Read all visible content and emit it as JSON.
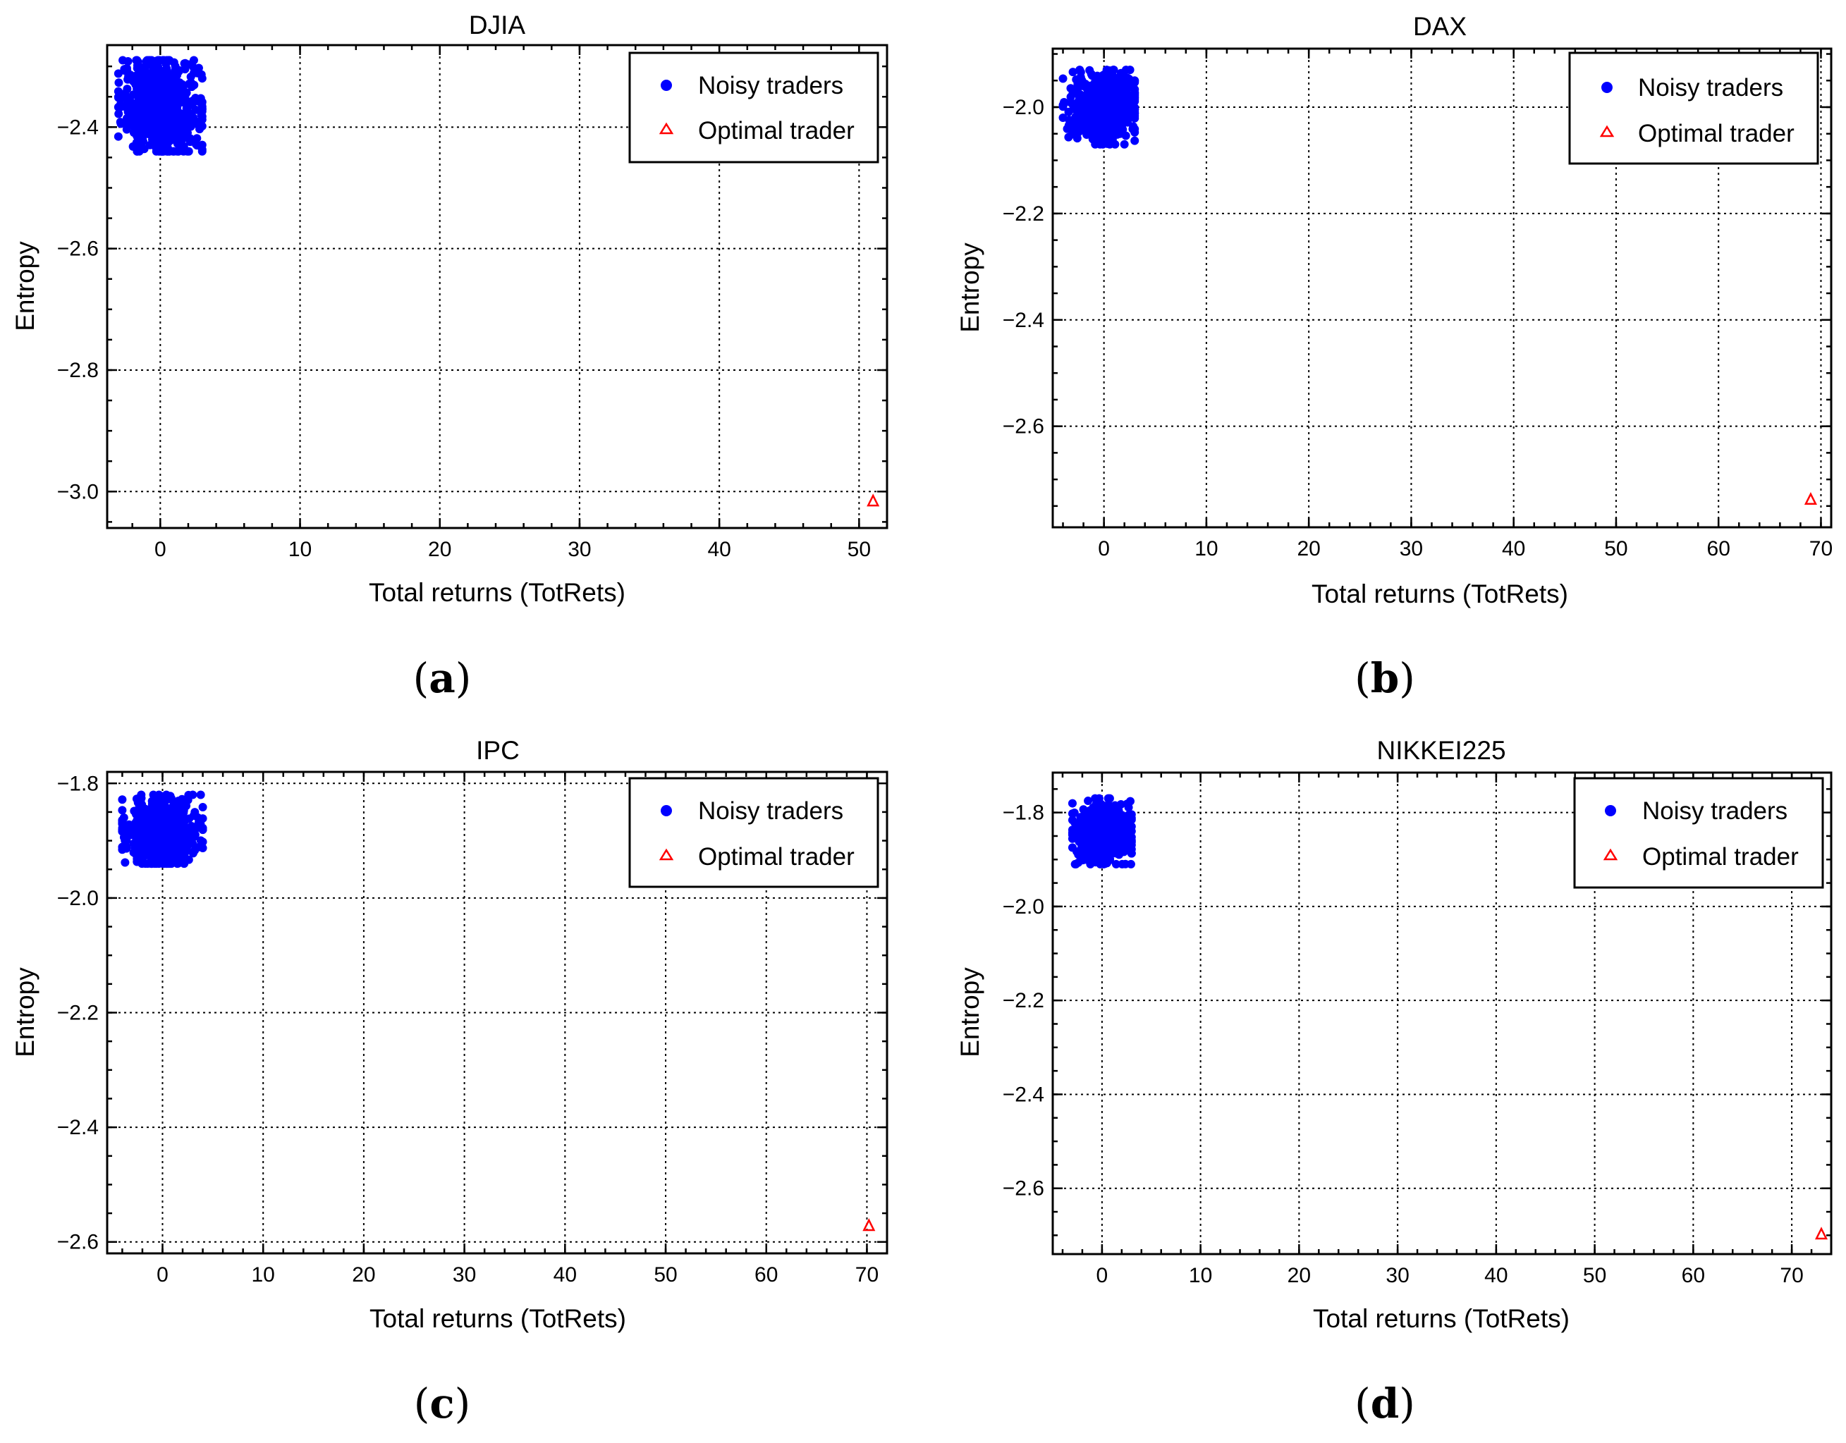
{
  "colors": {
    "noisy": "#0000ff",
    "optimal": "#ff0000"
  },
  "chart_data": [
    {
      "type": "scatter",
      "panel_label": "a",
      "title": "DJIA",
      "xlabel": "Total returns (TotRets)",
      "ylabel": "Entropy",
      "xlim": [
        -3.8,
        52
      ],
      "ylim": [
        -3.06,
        -2.265
      ],
      "xticks": [
        0,
        10,
        20,
        30,
        40,
        50
      ],
      "xtick_labels": [
        "0",
        "10",
        "20",
        "30",
        "40",
        "50"
      ],
      "yticks": [
        -2.4,
        -2.6,
        -2.8,
        -3.0
      ],
      "ytick_labels": [
        "−2.4",
        "−2.6",
        "−2.8",
        "−3.0"
      ],
      "legend": {
        "position": "top-right",
        "entries": [
          "Noisy traders",
          "Optimal trader"
        ]
      },
      "series": [
        {
          "name": "Noisy traders",
          "marker": "circle",
          "cluster": {
            "center": [
              0,
              -2.365
            ],
            "spread": [
              1.4,
              0.04
            ],
            "range_x": [
              -3,
              3
            ],
            "range_y": [
              -2.44,
              -2.29
            ],
            "count": 700
          }
        },
        {
          "name": "Optimal trader",
          "marker": "triangle",
          "points": [
            [
              51,
              -3.016
            ]
          ]
        }
      ]
    },
    {
      "type": "scatter",
      "panel_label": "b",
      "title": "DAX",
      "xlabel": "Total returns (TotRets)",
      "ylabel": "Entropy",
      "xlim": [
        -5,
        71
      ],
      "ylim": [
        -2.79,
        -1.89
      ],
      "xticks": [
        0,
        10,
        20,
        30,
        40,
        50,
        60,
        70
      ],
      "xtick_labels": [
        "0",
        "10",
        "20",
        "30",
        "40",
        "50",
        "60",
        "70"
      ],
      "yticks": [
        -2.0,
        -2.2,
        -2.4,
        -2.6
      ],
      "ytick_labels": [
        "−2.0",
        "−2.2",
        "−2.4",
        "−2.6"
      ],
      "legend": {
        "position": "top-right",
        "entries": [
          "Noisy traders",
          "Optimal trader"
        ]
      },
      "series": [
        {
          "name": "Noisy traders",
          "marker": "circle",
          "cluster": {
            "center": [
              0,
              -2.0
            ],
            "spread": [
              1.6,
              0.03
            ],
            "range_x": [
              -4,
              3
            ],
            "range_y": [
              -2.07,
              -1.93
            ],
            "count": 700
          }
        },
        {
          "name": "Optimal trader",
          "marker": "triangle",
          "points": [
            [
              69,
              -2.738
            ]
          ]
        }
      ]
    },
    {
      "type": "scatter",
      "panel_label": "c",
      "title": "IPC",
      "xlabel": "Total returns (TotRets)",
      "ylabel": "Entropy",
      "xlim": [
        -5.5,
        72
      ],
      "ylim": [
        -2.62,
        -1.78
      ],
      "xticks": [
        0,
        10,
        20,
        30,
        40,
        50,
        60,
        70
      ],
      "xtick_labels": [
        "0",
        "10",
        "20",
        "30",
        "40",
        "50",
        "60",
        "70"
      ],
      "yticks": [
        -1.8,
        -2.0,
        -2.2,
        -2.4,
        -2.6
      ],
      "ytick_labels": [
        "−1.8",
        "−2.0",
        "−2.2",
        "−2.4",
        "−2.6"
      ],
      "legend": {
        "position": "top-right",
        "entries": [
          "Noisy traders",
          "Optimal trader"
        ]
      },
      "series": [
        {
          "name": "Noisy traders",
          "marker": "circle",
          "cluster": {
            "center": [
              0,
              -1.885
            ],
            "spread": [
              1.7,
              0.028
            ],
            "range_x": [
              -4,
              4
            ],
            "range_y": [
              -1.94,
              -1.82
            ],
            "count": 700
          }
        },
        {
          "name": "Optimal trader",
          "marker": "triangle",
          "points": [
            [
              70.2,
              -2.572
            ]
          ]
        }
      ]
    },
    {
      "type": "scatter",
      "panel_label": "d",
      "title": "NIKKEI225",
      "xlabel": "Total returns (TotRets)",
      "ylabel": "Entropy",
      "xlim": [
        -5,
        74
      ],
      "ylim": [
        -2.74,
        -1.715
      ],
      "xticks": [
        0,
        10,
        20,
        30,
        40,
        50,
        60,
        70
      ],
      "xtick_labels": [
        "0",
        "10",
        "20",
        "30",
        "40",
        "50",
        "60",
        "70"
      ],
      "yticks": [
        -1.8,
        -2.0,
        -2.2,
        -2.4,
        -2.6
      ],
      "ytick_labels": [
        "−1.8",
        "−2.0",
        "−2.2",
        "−2.4",
        "−2.6"
      ],
      "legend": {
        "position": "top-right",
        "entries": [
          "Noisy traders",
          "Optimal trader"
        ]
      },
      "series": [
        {
          "name": "Noisy traders",
          "marker": "circle",
          "cluster": {
            "center": [
              0,
              -1.845
            ],
            "spread": [
              1.4,
              0.03
            ],
            "range_x": [
              -3,
              3
            ],
            "range_y": [
              -1.91,
              -1.77
            ],
            "count": 700
          }
        },
        {
          "name": "Optimal trader",
          "marker": "triangle",
          "points": [
            [
              73,
              -2.698
            ]
          ]
        }
      ]
    }
  ]
}
